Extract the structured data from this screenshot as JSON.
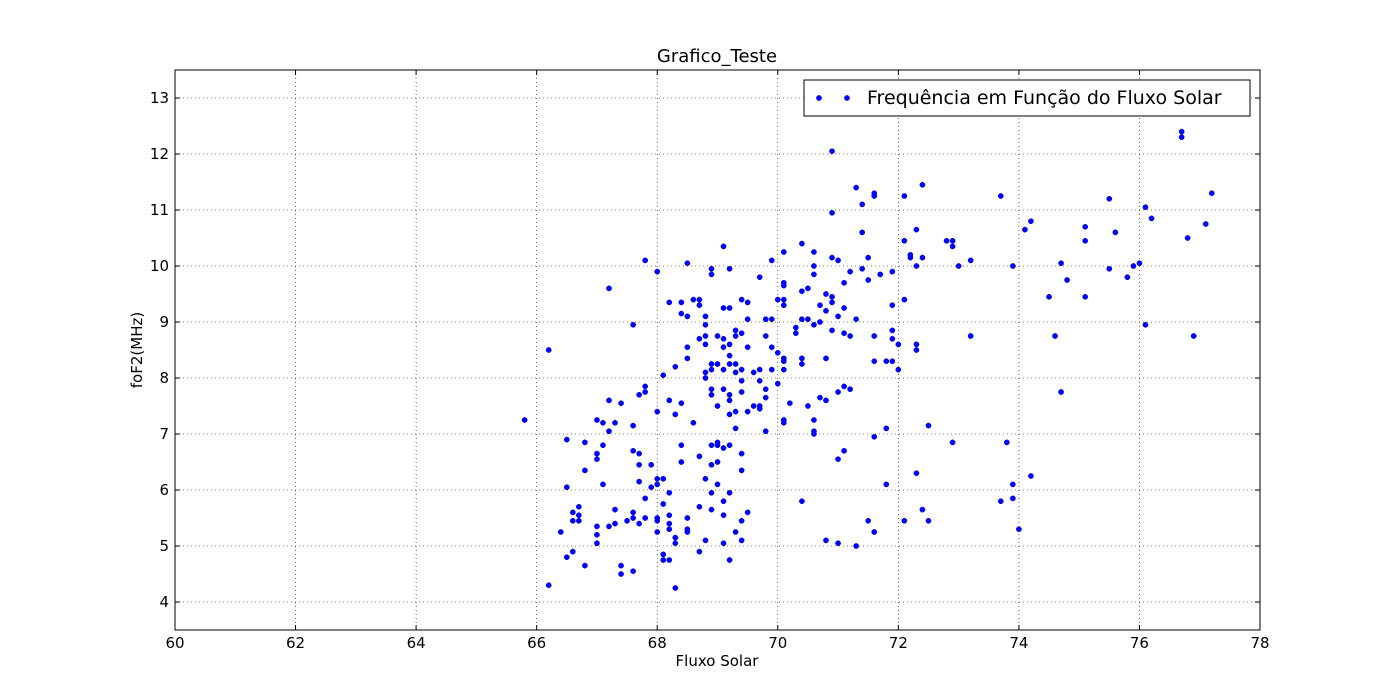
{
  "chart_data": {
    "type": "scatter",
    "title": "Grafico_Teste",
    "xlabel": "Fluxo Solar",
    "ylabel": "foF2(MHz)",
    "xlim": [
      60,
      78
    ],
    "ylim": [
      3.5,
      13.5
    ],
    "xticks": [
      60,
      62,
      64,
      66,
      68,
      70,
      72,
      74,
      76,
      78
    ],
    "yticks": [
      4,
      5,
      6,
      7,
      8,
      9,
      10,
      11,
      12,
      13
    ],
    "grid": true,
    "legend_position": "top-right",
    "series": [
      {
        "name": "Frequência em Função do Fluxo Solar",
        "color": "#0000ff",
        "marker": "dot",
        "points": [
          [
            65.8,
            7.25
          ],
          [
            66.2,
            8.5
          ],
          [
            66.2,
            4.3
          ],
          [
            66.4,
            5.25
          ],
          [
            66.5,
            6.9
          ],
          [
            66.5,
            6.05
          ],
          [
            66.5,
            4.8
          ],
          [
            66.6,
            4.9
          ],
          [
            66.6,
            5.45
          ],
          [
            66.6,
            5.6
          ],
          [
            66.7,
            5.7
          ],
          [
            66.7,
            5.55
          ],
          [
            66.7,
            5.45
          ],
          [
            66.8,
            6.85
          ],
          [
            66.8,
            6.35
          ],
          [
            66.8,
            4.65
          ],
          [
            67.0,
            7.25
          ],
          [
            67.0,
            6.65
          ],
          [
            67.0,
            6.55
          ],
          [
            67.0,
            5.35
          ],
          [
            67.0,
            5.2
          ],
          [
            67.0,
            5.05
          ],
          [
            67.1,
            7.2
          ],
          [
            67.1,
            6.8
          ],
          [
            67.1,
            6.1
          ],
          [
            67.2,
            9.6
          ],
          [
            67.2,
            7.6
          ],
          [
            67.2,
            7.05
          ],
          [
            67.2,
            5.35
          ],
          [
            67.3,
            7.2
          ],
          [
            67.3,
            5.65
          ],
          [
            67.3,
            5.4
          ],
          [
            67.4,
            7.55
          ],
          [
            67.4,
            4.65
          ],
          [
            67.4,
            4.5
          ],
          [
            67.5,
            5.45
          ],
          [
            67.6,
            8.95
          ],
          [
            67.6,
            7.15
          ],
          [
            67.6,
            6.7
          ],
          [
            67.6,
            5.6
          ],
          [
            67.6,
            5.5
          ],
          [
            67.6,
            4.55
          ],
          [
            67.7,
            7.7
          ],
          [
            67.7,
            6.65
          ],
          [
            67.7,
            6.45
          ],
          [
            67.7,
            6.15
          ],
          [
            67.7,
            5.4
          ],
          [
            67.8,
            10.1
          ],
          [
            67.8,
            7.85
          ],
          [
            67.8,
            7.75
          ],
          [
            67.8,
            5.85
          ],
          [
            67.8,
            5.5
          ],
          [
            67.9,
            6.45
          ],
          [
            67.9,
            6.05
          ],
          [
            68.0,
            9.9
          ],
          [
            68.0,
            7.4
          ],
          [
            68.0,
            6.2
          ],
          [
            68.0,
            6.1
          ],
          [
            68.0,
            5.5
          ],
          [
            68.0,
            5.45
          ],
          [
            68.0,
            5.25
          ],
          [
            68.1,
            8.05
          ],
          [
            68.1,
            6.2
          ],
          [
            68.1,
            5.75
          ],
          [
            68.1,
            4.85
          ],
          [
            68.1,
            4.75
          ],
          [
            68.2,
            9.35
          ],
          [
            68.2,
            7.6
          ],
          [
            68.2,
            5.95
          ],
          [
            68.2,
            5.55
          ],
          [
            68.2,
            5.4
          ],
          [
            68.2,
            5.3
          ],
          [
            68.2,
            4.75
          ],
          [
            68.3,
            8.2
          ],
          [
            68.3,
            7.35
          ],
          [
            68.3,
            5.15
          ],
          [
            68.3,
            5.05
          ],
          [
            68.3,
            4.25
          ],
          [
            68.4,
            9.35
          ],
          [
            68.4,
            9.15
          ],
          [
            68.4,
            7.55
          ],
          [
            68.4,
            6.8
          ],
          [
            68.4,
            6.5
          ],
          [
            68.5,
            10.05
          ],
          [
            68.5,
            9.1
          ],
          [
            68.5,
            8.55
          ],
          [
            68.5,
            8.35
          ],
          [
            68.5,
            5.5
          ],
          [
            68.5,
            5.3
          ],
          [
            68.5,
            5.25
          ],
          [
            68.6,
            9.4
          ],
          [
            68.6,
            7.2
          ],
          [
            68.7,
            9.4
          ],
          [
            68.7,
            9.3
          ],
          [
            68.7,
            8.7
          ],
          [
            68.7,
            6.6
          ],
          [
            68.7,
            5.7
          ],
          [
            68.7,
            4.9
          ],
          [
            68.8,
            9.1
          ],
          [
            68.8,
            8.95
          ],
          [
            68.8,
            8.75
          ],
          [
            68.8,
            8.6
          ],
          [
            68.8,
            8.1
          ],
          [
            68.8,
            8.0
          ],
          [
            68.8,
            6.2
          ],
          [
            68.8,
            5.1
          ],
          [
            68.9,
            9.95
          ],
          [
            68.9,
            9.85
          ],
          [
            68.9,
            8.25
          ],
          [
            68.9,
            8.15
          ],
          [
            68.9,
            7.8
          ],
          [
            68.9,
            7.7
          ],
          [
            68.9,
            6.8
          ],
          [
            68.9,
            6.45
          ],
          [
            68.9,
            5.95
          ],
          [
            68.9,
            5.65
          ],
          [
            69.0,
            8.75
          ],
          [
            69.0,
            8.25
          ],
          [
            69.0,
            7.5
          ],
          [
            69.0,
            6.85
          ],
          [
            69.0,
            6.8
          ],
          [
            69.0,
            6.5
          ],
          [
            69.0,
            6.1
          ],
          [
            69.1,
            10.35
          ],
          [
            69.1,
            9.25
          ],
          [
            69.1,
            8.7
          ],
          [
            69.1,
            8.55
          ],
          [
            69.1,
            8.15
          ],
          [
            69.1,
            7.8
          ],
          [
            69.1,
            6.75
          ],
          [
            69.1,
            5.8
          ],
          [
            69.1,
            5.55
          ],
          [
            69.1,
            5.05
          ],
          [
            69.2,
            9.95
          ],
          [
            69.2,
            9.25
          ],
          [
            69.2,
            8.6
          ],
          [
            69.2,
            8.4
          ],
          [
            69.2,
            8.25
          ],
          [
            69.2,
            7.7
          ],
          [
            69.2,
            7.6
          ],
          [
            69.2,
            7.35
          ],
          [
            69.2,
            6.8
          ],
          [
            69.2,
            5.95
          ],
          [
            69.2,
            4.75
          ],
          [
            69.3,
            8.85
          ],
          [
            69.3,
            8.75
          ],
          [
            69.3,
            8.25
          ],
          [
            69.3,
            8.1
          ],
          [
            69.3,
            7.4
          ],
          [
            69.3,
            7.1
          ],
          [
            69.3,
            5.25
          ],
          [
            69.4,
            9.4
          ],
          [
            69.4,
            8.8
          ],
          [
            69.4,
            8.15
          ],
          [
            69.4,
            7.95
          ],
          [
            69.4,
            7.75
          ],
          [
            69.4,
            6.65
          ],
          [
            69.4,
            6.35
          ],
          [
            69.4,
            5.45
          ],
          [
            69.4,
            5.1
          ],
          [
            69.5,
            9.35
          ],
          [
            69.5,
            9.05
          ],
          [
            69.5,
            8.55
          ],
          [
            69.5,
            7.4
          ],
          [
            69.5,
            5.6
          ],
          [
            69.6,
            8.1
          ],
          [
            69.6,
            7.5
          ],
          [
            69.7,
            9.8
          ],
          [
            69.7,
            8.15
          ],
          [
            69.7,
            7.95
          ],
          [
            69.7,
            7.5
          ],
          [
            69.7,
            7.45
          ],
          [
            69.8,
            9.05
          ],
          [
            69.8,
            8.75
          ],
          [
            69.8,
            7.8
          ],
          [
            69.8,
            7.65
          ],
          [
            69.8,
            7.05
          ],
          [
            69.9,
            10.1
          ],
          [
            69.9,
            9.05
          ],
          [
            69.9,
            8.55
          ],
          [
            69.9,
            8.15
          ],
          [
            70.0,
            9.4
          ],
          [
            70.0,
            8.45
          ],
          [
            70.0,
            7.9
          ],
          [
            70.1,
            10.25
          ],
          [
            70.1,
            9.7
          ],
          [
            70.1,
            9.65
          ],
          [
            70.1,
            9.4
          ],
          [
            70.1,
            9.3
          ],
          [
            70.1,
            8.35
          ],
          [
            70.1,
            8.3
          ],
          [
            70.1,
            8.15
          ],
          [
            70.1,
            7.25
          ],
          [
            70.1,
            7.2
          ],
          [
            70.2,
            7.55
          ],
          [
            70.3,
            8.9
          ],
          [
            70.3,
            8.8
          ],
          [
            70.4,
            10.4
          ],
          [
            70.4,
            9.55
          ],
          [
            70.4,
            9.05
          ],
          [
            70.4,
            8.35
          ],
          [
            70.4,
            8.25
          ],
          [
            70.4,
            5.8
          ],
          [
            70.5,
            9.6
          ],
          [
            70.5,
            9.05
          ],
          [
            70.5,
            7.5
          ],
          [
            70.6,
            10.25
          ],
          [
            70.6,
            10.0
          ],
          [
            70.6,
            9.85
          ],
          [
            70.6,
            8.95
          ],
          [
            70.6,
            7.25
          ],
          [
            70.6,
            7.05
          ],
          [
            70.6,
            7.0
          ],
          [
            70.7,
            9.3
          ],
          [
            70.7,
            9.0
          ],
          [
            70.7,
            7.65
          ],
          [
            70.8,
            9.5
          ],
          [
            70.8,
            9.2
          ],
          [
            70.8,
            8.35
          ],
          [
            70.8,
            7.6
          ],
          [
            70.8,
            5.1
          ],
          [
            70.9,
            12.05
          ],
          [
            70.9,
            10.95
          ],
          [
            70.9,
            10.15
          ],
          [
            70.9,
            9.45
          ],
          [
            70.9,
            9.35
          ],
          [
            70.9,
            8.85
          ],
          [
            71.0,
            10.1
          ],
          [
            71.0,
            9.1
          ],
          [
            71.0,
            7.75
          ],
          [
            71.0,
            6.55
          ],
          [
            71.0,
            5.05
          ],
          [
            71.1,
            9.7
          ],
          [
            71.1,
            9.25
          ],
          [
            71.1,
            8.8
          ],
          [
            71.1,
            7.85
          ],
          [
            71.1,
            6.7
          ],
          [
            71.2,
            9.9
          ],
          [
            71.2,
            8.75
          ],
          [
            71.2,
            7.8
          ],
          [
            71.3,
            11.4
          ],
          [
            71.3,
            9.05
          ],
          [
            71.3,
            5.0
          ],
          [
            71.4,
            11.1
          ],
          [
            71.4,
            10.6
          ],
          [
            71.4,
            9.95
          ],
          [
            71.5,
            10.15
          ],
          [
            71.5,
            9.75
          ],
          [
            71.5,
            5.45
          ],
          [
            71.6,
            11.3
          ],
          [
            71.6,
            11.25
          ],
          [
            71.6,
            8.75
          ],
          [
            71.6,
            8.3
          ],
          [
            71.6,
            6.95
          ],
          [
            71.6,
            5.25
          ],
          [
            71.7,
            9.85
          ],
          [
            71.8,
            8.3
          ],
          [
            71.8,
            7.1
          ],
          [
            71.8,
            6.1
          ],
          [
            71.9,
            9.9
          ],
          [
            71.9,
            9.3
          ],
          [
            71.9,
            8.85
          ],
          [
            71.9,
            8.7
          ],
          [
            71.9,
            8.3
          ],
          [
            72.0,
            8.6
          ],
          [
            72.0,
            8.15
          ],
          [
            72.1,
            11.25
          ],
          [
            72.1,
            10.45
          ],
          [
            72.1,
            9.4
          ],
          [
            72.1,
            5.45
          ],
          [
            72.2,
            10.2
          ],
          [
            72.2,
            10.15
          ],
          [
            72.3,
            10.65
          ],
          [
            72.3,
            10.0
          ],
          [
            72.3,
            8.6
          ],
          [
            72.3,
            8.5
          ],
          [
            72.3,
            6.3
          ],
          [
            72.4,
            11.45
          ],
          [
            72.4,
            10.15
          ],
          [
            72.4,
            5.65
          ],
          [
            72.5,
            7.15
          ],
          [
            72.5,
            5.45
          ],
          [
            72.8,
            10.45
          ],
          [
            72.9,
            10.45
          ],
          [
            72.9,
            10.35
          ],
          [
            72.9,
            6.85
          ],
          [
            73.0,
            10.0
          ],
          [
            73.2,
            10.1
          ],
          [
            73.2,
            8.75
          ],
          [
            73.7,
            11.25
          ],
          [
            73.7,
            5.8
          ],
          [
            73.8,
            6.85
          ],
          [
            73.9,
            10.0
          ],
          [
            73.9,
            6.1
          ],
          [
            73.9,
            5.85
          ],
          [
            74.0,
            5.3
          ],
          [
            74.1,
            10.65
          ],
          [
            74.2,
            10.8
          ],
          [
            74.2,
            6.25
          ],
          [
            74.5,
            9.45
          ],
          [
            74.6,
            8.75
          ],
          [
            74.7,
            10.05
          ],
          [
            74.7,
            7.75
          ],
          [
            74.8,
            9.75
          ],
          [
            75.1,
            10.7
          ],
          [
            75.1,
            10.45
          ],
          [
            75.1,
            9.45
          ],
          [
            75.5,
            11.2
          ],
          [
            75.5,
            9.95
          ],
          [
            75.6,
            10.6
          ],
          [
            75.8,
            9.8
          ],
          [
            75.9,
            10.0
          ],
          [
            76.0,
            10.05
          ],
          [
            76.1,
            11.05
          ],
          [
            76.1,
            8.95
          ],
          [
            76.2,
            10.85
          ],
          [
            76.7,
            12.4
          ],
          [
            76.7,
            12.3
          ],
          [
            76.8,
            10.5
          ],
          [
            76.9,
            8.75
          ],
          [
            77.1,
            10.75
          ],
          [
            77.2,
            11.3
          ]
        ]
      }
    ]
  }
}
